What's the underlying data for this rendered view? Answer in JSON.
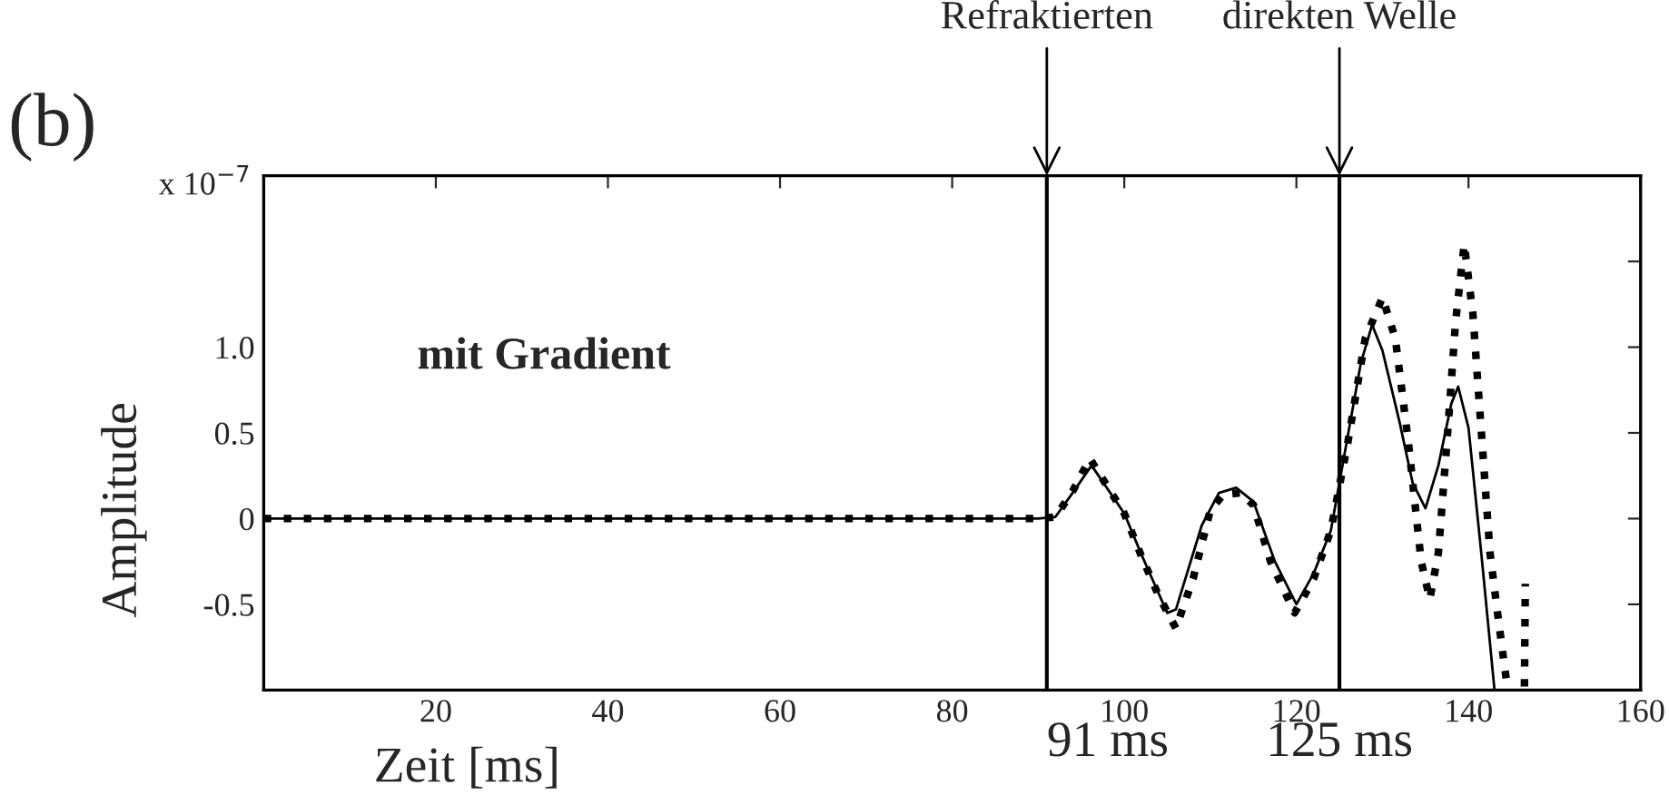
{
  "chart_data": {
    "type": "line",
    "xlabel": "Zeit [ms]",
    "ylabel": "Amplitude",
    "annotations": [
      "(b)",
      "x 10$^{−7}$",
      "mit Gradient",
      {
        "text": "Refraktierten",
        "x": 91,
        "y": 2.0
      },
      {
        "text": "direkten Welle",
        "x": 125,
        "y": 2.0
      }
    ],
    "series": [
      {
        "color": "#000000",
        "line_style": "solid",
        "x": [
          0,
          90,
          92,
          94,
          96.2,
          100,
          102,
          105,
          106,
          109,
          111,
          113,
          115,
          117.5,
          120,
          122,
          124,
          126,
          127.5,
          128.8,
          130,
          132,
          133.5,
          135,
          136.5,
          138,
          138.8,
          140,
          141.5,
          143
        ],
        "values": [
          0,
          0,
          0.01,
          0.15,
          0.31,
          0.03,
          -0.21,
          -0.55,
          -0.53,
          -0.04,
          0.15,
          0.18,
          0.1,
          -0.25,
          -0.5,
          -0.32,
          -0.07,
          0.49,
          0.91,
          1.13,
          0.98,
          0.56,
          0.21,
          0.06,
          0.31,
          0.67,
          0.77,
          0.53,
          -0.21,
          -0.99
        ]
      },
      {
        "color": "#000000",
        "line_style": "dotted",
        "x": [
          0,
          90,
          92,
          94,
          96,
          100,
          102,
          104,
          106,
          108,
          110,
          111.5,
          113.5,
          115,
          117,
          119.8,
          122,
          124,
          126,
          128,
          130,
          131.5,
          133,
          134.5,
          135.5,
          136.5,
          137.5,
          138.5,
          139.5,
          140.5,
          141.5,
          142.5,
          143.5,
          144.5,
          145.5,
          146.5,
          146.6
        ],
        "values": [
          0,
          0,
          0.01,
          0.16,
          0.35,
          0.03,
          -0.22,
          -0.45,
          -0.64,
          -0.35,
          0.05,
          0.14,
          0.15,
          0.08,
          -0.25,
          -0.55,
          -0.35,
          -0.07,
          0.45,
          1.05,
          1.29,
          1.05,
          0.45,
          -0.25,
          -0.47,
          -0.2,
          0.45,
          1.15,
          1.6,
          1.2,
          0.5,
          -0.2,
          -0.6,
          -0.98,
          null,
          -0.98,
          -0.38
        ]
      }
    ],
    "xlim": [
      0,
      160
    ],
    "xticks": [
      20,
      40,
      60,
      80,
      100,
      120,
      140,
      160
    ],
    "ylim": [
      -1.0,
      2.0
    ],
    "yticks": [
      -0.5,
      0,
      0.5,
      {
        "value": 1.0,
        "label": "1.0"
      },
      {
        "value": 1.5,
        "label": null
      }
    ],
    "ref_lines": [
      {
        "axis": "x",
        "value": 91,
        "label": "91 ms",
        "color": "#000000"
      },
      {
        "axis": "x",
        "value": 125,
        "label": "125 ms",
        "color": "#000000"
      }
    ],
    "grid": false,
    "legend": false,
    "marker": "none"
  }
}
